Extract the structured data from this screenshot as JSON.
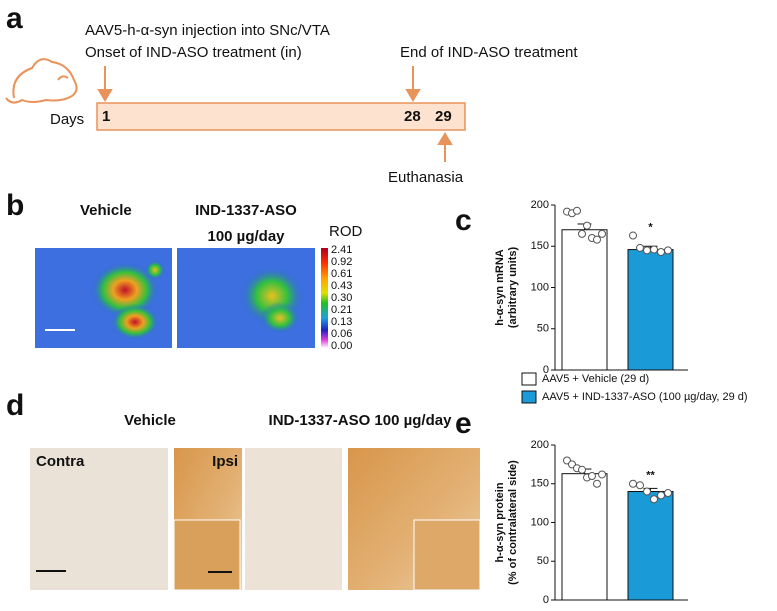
{
  "panels": {
    "a": {
      "label": "a",
      "texts": [
        "AAV5-h-α-syn injection into SNc/VTA",
        "Onset of IND-ASO treatment (in)",
        "End of IND-ASO treatment",
        "Euthanasia"
      ],
      "axis_label": "Days",
      "days": [
        "1",
        "28",
        "29"
      ]
    },
    "b": {
      "label": "b",
      "conditions": [
        "Vehicle",
        "IND-1337-ASO"
      ],
      "dose": "100 µg/day",
      "colorbar_title": "ROD",
      "colorbar_labels": [
        "2.41",
        "0.92",
        "0.61",
        "0.43",
        "0.30",
        "0.21",
        "0.13",
        "0.06",
        "0.00"
      ]
    },
    "d": {
      "label": "d",
      "conditions": [
        "Vehicle",
        "IND-1337-ASO 100 µg/day"
      ],
      "sides": [
        "Contra",
        "Ipsi"
      ]
    }
  },
  "chart_data": [
    {
      "type": "bar",
      "panel": "c",
      "ylabel": [
        "h-α-syn mRNA",
        "(arbitrary units)"
      ],
      "ylim": [
        0,
        200
      ],
      "yticks": [
        0,
        50,
        100,
        150,
        200
      ],
      "series": [
        {
          "name": "AAV5 + Vehicle (29 d)",
          "color": "#ffffff",
          "values": [
            170
          ],
          "errors": [
            7
          ],
          "points": [
            192,
            190,
            193,
            165,
            175,
            160,
            158,
            165
          ]
        },
        {
          "name": "AAV5 + IND-1337-ASO (100 µg/day, 29 d)",
          "color": "#1a9bd7",
          "values": [
            146
          ],
          "errors": [
            4
          ],
          "points": [
            163,
            148,
            145,
            146,
            143,
            145
          ]
        }
      ],
      "annotations": [
        "*"
      ]
    },
    {
      "type": "bar",
      "panel": "e",
      "ylabel": [
        "h-α-syn protein",
        "(% of contralateral side)"
      ],
      "ylim": [
        0,
        200
      ],
      "yticks": [
        0,
        50,
        100,
        150,
        200
      ],
      "series": [
        {
          "color": "#ffffff",
          "values": [
            163
          ],
          "errors": [
            6
          ],
          "points": [
            180,
            175,
            170,
            168,
            158,
            160,
            150,
            162
          ]
        },
        {
          "color": "#1a9bd7",
          "values": [
            140
          ],
          "errors": [
            4
          ],
          "points": [
            150,
            148,
            140,
            130,
            135,
            138
          ]
        }
      ],
      "annotations": [
        "**"
      ]
    }
  ]
}
